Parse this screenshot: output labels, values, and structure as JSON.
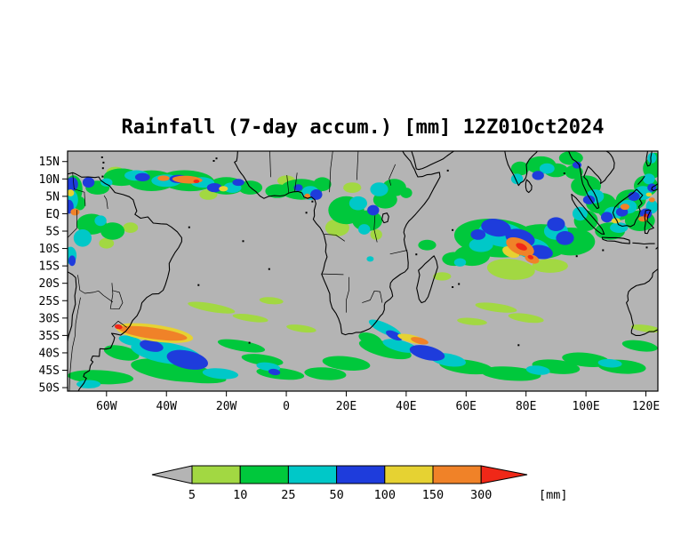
{
  "chart_data": {
    "type": "heatmap",
    "title": "Rainfall (7-day accum.) [mm] 12Z01Oct2024",
    "projection": {
      "lon_min": -73,
      "lon_max": 124,
      "lat_min": -51,
      "lat_max": 18
    },
    "x_ticks": [
      {
        "value": -60,
        "label": "60W"
      },
      {
        "value": -40,
        "label": "40W"
      },
      {
        "value": -20,
        "label": "20W"
      },
      {
        "value": 0,
        "label": "0"
      },
      {
        "value": 20,
        "label": "20E"
      },
      {
        "value": 40,
        "label": "40E"
      },
      {
        "value": 60,
        "label": "60E"
      },
      {
        "value": 80,
        "label": "80E"
      },
      {
        "value": 100,
        "label": "100E"
      },
      {
        "value": 120,
        "label": "120E"
      }
    ],
    "y_ticks": [
      {
        "value": 15,
        "label": "15N"
      },
      {
        "value": 10,
        "label": "10N"
      },
      {
        "value": 5,
        "label": "5N"
      },
      {
        "value": 0,
        "label": "EQ"
      },
      {
        "value": -5,
        "label": "5S"
      },
      {
        "value": -10,
        "label": "10S"
      },
      {
        "value": -15,
        "label": "15S"
      },
      {
        "value": -20,
        "label": "20S"
      },
      {
        "value": -25,
        "label": "25S"
      },
      {
        "value": -30,
        "label": "30S"
      },
      {
        "value": -35,
        "label": "35S"
      },
      {
        "value": -40,
        "label": "40S"
      },
      {
        "value": -45,
        "label": "45S"
      },
      {
        "value": -50,
        "label": "50S"
      }
    ],
    "background_color": "#b4b4b4",
    "under_color": "#b4b4b4",
    "boundaries": [
      5,
      10,
      25,
      50,
      100,
      150,
      300
    ],
    "level_colors": [
      "#a2d842",
      "#00c83c",
      "#00c8c8",
      "#1e3cdc",
      "#e6d232",
      "#f08228",
      "#f02818"
    ],
    "colorbar": {
      "boundary_labels": [
        "5",
        "10",
        "25",
        "50",
        "100",
        "150",
        "300"
      ],
      "unit_label": "[mm]"
    },
    "rain_patches": {
      "columns": [
        "lon",
        "lat",
        "rx_deg",
        "ry_deg",
        "rotation_deg",
        "level_index"
      ],
      "rows": [
        [
          -55,
          10.5,
          6,
          2.5,
          0,
          1
        ],
        [
          -45,
          9.5,
          8,
          3,
          0,
          1
        ],
        [
          -33,
          9.5,
          9,
          3,
          3,
          1
        ],
        [
          -20,
          8,
          6,
          2.5,
          0,
          1
        ],
        [
          -12,
          7.5,
          4,
          2,
          0,
          1
        ],
        [
          -26,
          5.5,
          3,
          1.5,
          0,
          0
        ],
        [
          -57,
          12,
          3,
          1.5,
          0,
          0
        ],
        [
          -50,
          11,
          4,
          1.5,
          0,
          2
        ],
        [
          -40,
          9.5,
          5,
          1.8,
          0,
          2
        ],
        [
          -28,
          9,
          4,
          1.5,
          3,
          2
        ],
        [
          -18,
          7.5,
          3,
          1.5,
          0,
          2
        ],
        [
          -60,
          9,
          2,
          1.2,
          0,
          2
        ],
        [
          -48,
          10.5,
          2.5,
          1.2,
          0,
          3
        ],
        [
          -36,
          10,
          3,
          1.2,
          0,
          3
        ],
        [
          -24,
          7.5,
          2.5,
          1.3,
          0,
          3
        ],
        [
          -16,
          9,
          2,
          1,
          0,
          3
        ],
        [
          -33,
          9.8,
          5,
          1.1,
          3,
          5
        ],
        [
          -41,
          10.2,
          2,
          0.8,
          0,
          5
        ],
        [
          -30,
          9.3,
          1,
          0.5,
          0,
          6
        ],
        [
          -21,
          7.2,
          1.5,
          0.8,
          0,
          4
        ],
        [
          -63,
          7.5,
          4,
          2,
          0,
          1
        ],
        [
          -66,
          9,
          2,
          1.5,
          0,
          3
        ],
        [
          -71,
          7,
          3,
          4,
          0,
          1
        ],
        [
          -72,
          4,
          2.5,
          3,
          0,
          2
        ],
        [
          -71.5,
          8.5,
          2,
          2,
          0,
          3
        ],
        [
          -72.5,
          2,
          1.5,
          2,
          0,
          3
        ],
        [
          -70.5,
          0.5,
          1.5,
          1,
          0,
          5
        ],
        [
          -72,
          6,
          1.2,
          1,
          0,
          4
        ],
        [
          -69,
          3,
          2,
          2,
          0,
          1
        ],
        [
          -65,
          -3,
          5,
          3,
          0,
          1
        ],
        [
          -58,
          -5,
          4,
          2.5,
          0,
          1
        ],
        [
          -68,
          -7,
          3,
          2.5,
          0,
          2
        ],
        [
          -62,
          -2,
          2,
          1.5,
          0,
          2
        ],
        [
          -60,
          -8.5,
          2.5,
          1.5,
          0,
          0
        ],
        [
          -72,
          -12,
          2,
          2.5,
          0,
          2
        ],
        [
          -71.5,
          -13.5,
          1.2,
          1.5,
          0,
          3
        ],
        [
          -52,
          -4,
          2.5,
          1.5,
          0,
          0
        ],
        [
          5,
          7,
          7,
          3,
          0,
          1
        ],
        [
          -3,
          6.5,
          4,
          2,
          0,
          1
        ],
        [
          8,
          6,
          3,
          2,
          0,
          2
        ],
        [
          10,
          5.5,
          2,
          1.5,
          0,
          3
        ],
        [
          4,
          7.5,
          1.5,
          1,
          0,
          3
        ],
        [
          7,
          5,
          1,
          0.8,
          0,
          5
        ],
        [
          12,
          8.5,
          3,
          2,
          0,
          1
        ],
        [
          0,
          9.5,
          3,
          1.5,
          0,
          0
        ],
        [
          20,
          1,
          6,
          4,
          0,
          1
        ],
        [
          27,
          -2,
          5,
          3,
          0,
          1
        ],
        [
          17,
          -4,
          4,
          2.5,
          0,
          0
        ],
        [
          24,
          3,
          3,
          2,
          0,
          2
        ],
        [
          29,
          1,
          2,
          1.5,
          0,
          3
        ],
        [
          26,
          -4.5,
          2,
          1.5,
          0,
          2
        ],
        [
          33,
          4,
          4,
          2.5,
          0,
          1
        ],
        [
          36,
          7.5,
          4,
          2.5,
          0,
          1
        ],
        [
          31,
          7,
          3,
          2,
          0,
          2
        ],
        [
          40,
          6,
          2,
          1.5,
          0,
          1
        ],
        [
          22,
          7.5,
          3,
          1.5,
          0,
          0
        ],
        [
          30,
          -6,
          2,
          1.5,
          0,
          0
        ],
        [
          28,
          -13,
          1.2,
          0.8,
          0,
          2
        ],
        [
          -25,
          -27,
          8,
          1.2,
          10,
          0
        ],
        [
          -12,
          -30,
          6,
          1,
          8,
          0
        ],
        [
          -5,
          -25,
          4,
          1,
          5,
          0
        ],
        [
          5,
          -33,
          5,
          1,
          8,
          0
        ],
        [
          -44,
          -34.3,
          13,
          2.4,
          8,
          4
        ],
        [
          -44.5,
          -34.4,
          11.5,
          1.6,
          8,
          5
        ],
        [
          -56,
          -32.5,
          1.3,
          0.7,
          10,
          6
        ],
        [
          -40,
          -40,
          12,
          3,
          10,
          2
        ],
        [
          -33,
          -42,
          7,
          2.6,
          12,
          3
        ],
        [
          -45,
          -38,
          4,
          1.6,
          12,
          3
        ],
        [
          -38,
          -45,
          14,
          3,
          8,
          1
        ],
        [
          -55,
          -40,
          6,
          2,
          12,
          1
        ],
        [
          -52,
          -36.5,
          4,
          1.3,
          14,
          2
        ],
        [
          -62,
          -47,
          11,
          2,
          3,
          1
        ],
        [
          -66,
          -49,
          4,
          1.2,
          0,
          2
        ],
        [
          -30,
          -47,
          10,
          1.6,
          5,
          1
        ],
        [
          -22,
          -46,
          6,
          1.5,
          5,
          2
        ],
        [
          -15,
          -38,
          8,
          1.5,
          10,
          1
        ],
        [
          -8,
          -42,
          7,
          1.5,
          8,
          1
        ],
        [
          -2,
          -46,
          8,
          1.6,
          6,
          1
        ],
        [
          -6,
          -44,
          4,
          1.2,
          8,
          2
        ],
        [
          -4,
          -45.5,
          2,
          0.9,
          8,
          3
        ],
        [
          20,
          -43,
          8,
          2,
          6,
          1
        ],
        [
          33,
          -39,
          9,
          2.2,
          14,
          1
        ],
        [
          38,
          -38,
          6,
          1.6,
          14,
          2
        ],
        [
          42,
          -36,
          5,
          1.1,
          14,
          4
        ],
        [
          44.5,
          -36.5,
          3,
          0.9,
          14,
          5
        ],
        [
          47,
          -40,
          6,
          2,
          13,
          3
        ],
        [
          54,
          -42,
          6,
          1.8,
          10,
          2
        ],
        [
          60,
          -44,
          9,
          2,
          7,
          1
        ],
        [
          33,
          -33,
          6,
          1.5,
          25,
          2
        ],
        [
          36,
          -35,
          3,
          1.1,
          25,
          3
        ],
        [
          28,
          -36,
          4,
          1.6,
          18,
          1
        ],
        [
          13,
          -46,
          7,
          1.8,
          4,
          1
        ],
        [
          70,
          -7,
          14,
          5.5,
          5,
          1
        ],
        [
          85,
          -8,
          10,
          5,
          0,
          1
        ],
        [
          62,
          -12,
          6,
          3,
          0,
          1
        ],
        [
          95,
          -8,
          8,
          4,
          0,
          1
        ],
        [
          75,
          -16,
          8,
          3,
          5,
          0
        ],
        [
          88,
          -15,
          6,
          2,
          0,
          0
        ],
        [
          72,
          -6,
          8,
          3.5,
          10,
          2
        ],
        [
          82,
          -10,
          6,
          3,
          10,
          2
        ],
        [
          90,
          -5,
          4,
          2.5,
          0,
          2
        ],
        [
          65,
          -9,
          4,
          2,
          0,
          2
        ],
        [
          70,
          -4,
          5,
          2.5,
          10,
          3
        ],
        [
          78,
          -7,
          5,
          2.5,
          15,
          3
        ],
        [
          85,
          -11,
          4,
          2,
          10,
          3
        ],
        [
          90,
          -3,
          3,
          2,
          0,
          3
        ],
        [
          93,
          -7,
          3,
          2,
          0,
          3
        ],
        [
          64,
          -6,
          2.5,
          1.5,
          0,
          3
        ],
        [
          75,
          -11,
          3,
          1.5,
          20,
          4
        ],
        [
          78,
          -9.5,
          5,
          2.2,
          25,
          5
        ],
        [
          82,
          -13,
          2.5,
          1.2,
          20,
          5
        ],
        [
          78.5,
          -9.5,
          2,
          0.9,
          25,
          6
        ],
        [
          81.5,
          -12.5,
          1,
          0.6,
          20,
          6
        ],
        [
          56,
          -13,
          4,
          2,
          0,
          1
        ],
        [
          58,
          -14,
          2,
          1.2,
          0,
          2
        ],
        [
          47,
          -9,
          3,
          1.5,
          0,
          1
        ],
        [
          52,
          -18,
          3,
          1.2,
          0,
          0
        ],
        [
          70,
          -27,
          7,
          1.2,
          8,
          0
        ],
        [
          80,
          -30,
          6,
          1.2,
          8,
          0
        ],
        [
          62,
          -31,
          5,
          1,
          5,
          0
        ],
        [
          75,
          -46,
          10,
          2,
          4,
          1
        ],
        [
          90,
          -44,
          8,
          2,
          6,
          1
        ],
        [
          84,
          -45,
          4,
          1.3,
          6,
          2
        ],
        [
          100,
          -42,
          8,
          2,
          6,
          1
        ],
        [
          112,
          -44,
          8,
          2,
          4,
          1
        ],
        [
          108,
          -43,
          4,
          1.2,
          4,
          2
        ],
        [
          118,
          -38,
          6,
          1.5,
          8,
          1
        ],
        [
          120,
          -33,
          5,
          1,
          8,
          0
        ],
        [
          85,
          14,
          5,
          2.5,
          0,
          1
        ],
        [
          90,
          12.5,
          4,
          2,
          0,
          1
        ],
        [
          87,
          13,
          2.5,
          1.5,
          0,
          2
        ],
        [
          84,
          11,
          2,
          1.3,
          0,
          3
        ],
        [
          78,
          13,
          3,
          2,
          0,
          1
        ],
        [
          77,
          10,
          2,
          1.5,
          0,
          2
        ],
        [
          95,
          16,
          4,
          2,
          0,
          1
        ],
        [
          97,
          14,
          1.5,
          1,
          0,
          3
        ],
        [
          100,
          8,
          5,
          3,
          0,
          1
        ],
        [
          105,
          3,
          5,
          3,
          0,
          1
        ],
        [
          110,
          1,
          6,
          3,
          0,
          1
        ],
        [
          115,
          4,
          5,
          3,
          0,
          1
        ],
        [
          120,
          8,
          4,
          3,
          0,
          1
        ],
        [
          118,
          -2,
          5,
          3,
          0,
          1
        ],
        [
          108,
          -5,
          5,
          2.5,
          0,
          1
        ],
        [
          100,
          -2,
          4,
          3,
          0,
          1
        ],
        [
          122,
          13,
          3,
          3,
          0,
          1
        ],
        [
          96,
          12,
          3,
          2,
          0,
          1
        ],
        [
          103,
          5,
          3,
          2,
          0,
          2
        ],
        [
          109,
          0,
          3,
          2,
          0,
          2
        ],
        [
          114,
          2,
          3,
          2,
          0,
          2
        ],
        [
          119,
          6,
          3,
          2,
          0,
          2
        ],
        [
          111,
          -4,
          3,
          1.5,
          0,
          2
        ],
        [
          98,
          0,
          2.5,
          2,
          0,
          2
        ],
        [
          122,
          2,
          2,
          2,
          0,
          2
        ],
        [
          121,
          10,
          2,
          1.5,
          0,
          2
        ],
        [
          101,
          4,
          2,
          1.3,
          0,
          3
        ],
        [
          107,
          -1,
          2,
          1.5,
          0,
          3
        ],
        [
          112,
          0.5,
          2,
          1.3,
          0,
          3
        ],
        [
          116,
          5,
          2,
          1.3,
          0,
          3
        ],
        [
          120,
          0,
          2,
          1.5,
          0,
          3
        ],
        [
          122,
          7.5,
          1.5,
          1.2,
          0,
          3
        ],
        [
          113,
          2,
          1.5,
          0.9,
          0,
          5
        ],
        [
          119,
          -1.5,
          1.5,
          0.8,
          0,
          5
        ],
        [
          122,
          4,
          1,
          0.7,
          0,
          5
        ],
        [
          110,
          -2,
          1.5,
          0.8,
          0,
          4
        ],
        [
          121,
          5.5,
          1,
          0.6,
          0,
          4
        ],
        [
          120,
          -0.5,
          0.8,
          0.5,
          0,
          6
        ],
        [
          123,
          15,
          2.5,
          2.5,
          0,
          1
        ],
        [
          122,
          16,
          1.5,
          1.5,
          0,
          2
        ]
      ]
    }
  }
}
